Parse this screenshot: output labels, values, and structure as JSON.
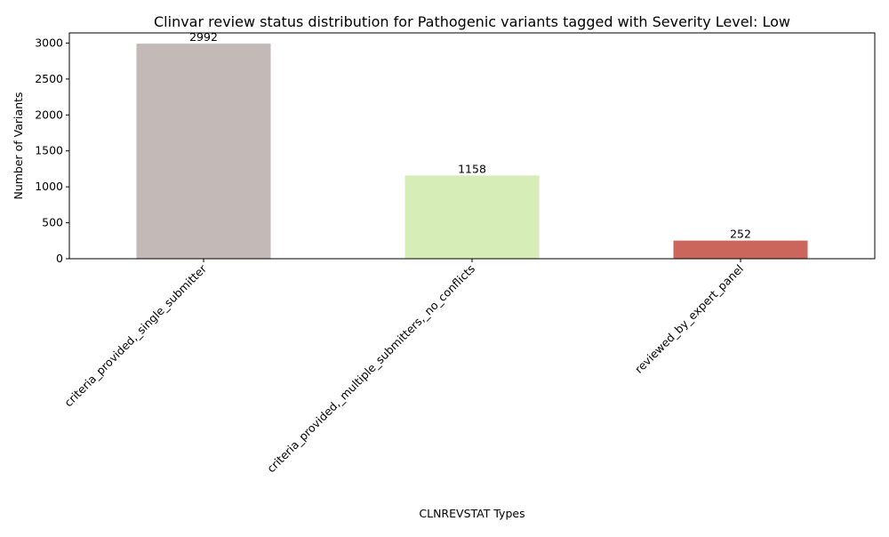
{
  "chart_data": {
    "type": "bar",
    "title": "Clinvar review status distribution for Pathogenic variants tagged with Severity Level: Low",
    "xlabel": "CLNREVSTAT Types",
    "ylabel": "Number of Variants",
    "categories": [
      "criteria_provided,_single_submitter",
      "criteria_provided,_multiple_submitters,_no_conflicts",
      "reviewed_by_expert_panel"
    ],
    "values": [
      2992,
      1158,
      252
    ],
    "data_labels": [
      "2992",
      "1158",
      "252"
    ],
    "colors": [
      "#c3bab7",
      "#d7edb8",
      "#cb665c"
    ],
    "ylim": [
      0,
      3141.6
    ],
    "yticks": [
      0,
      500,
      1000,
      1500,
      2000,
      2500,
      3000
    ],
    "grid": false,
    "legend": "none"
  }
}
